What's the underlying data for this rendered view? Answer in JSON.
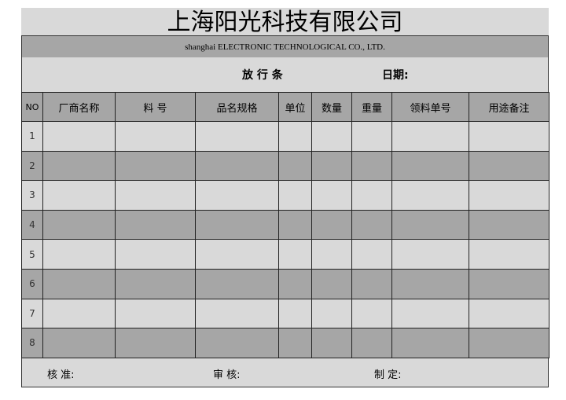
{
  "title": "上海阳光科技有限公司",
  "subtitle": "shanghai  ELECTRONIC TECHNOLOGICAL CO., LTD.",
  "form_name": "放 行 条",
  "date_label": "日期:",
  "headers": [
    "NO",
    "厂商名称",
    "料  号",
    "品名规格",
    "单位",
    "数量",
    "重量",
    "领料单号",
    "用途备注"
  ],
  "rows": [
    "1",
    "2",
    "3",
    "4",
    "5",
    "6",
    "7",
    "8"
  ],
  "footer": {
    "approve": "核 准:",
    "review": "审 核:",
    "prepared": "制 定:"
  }
}
